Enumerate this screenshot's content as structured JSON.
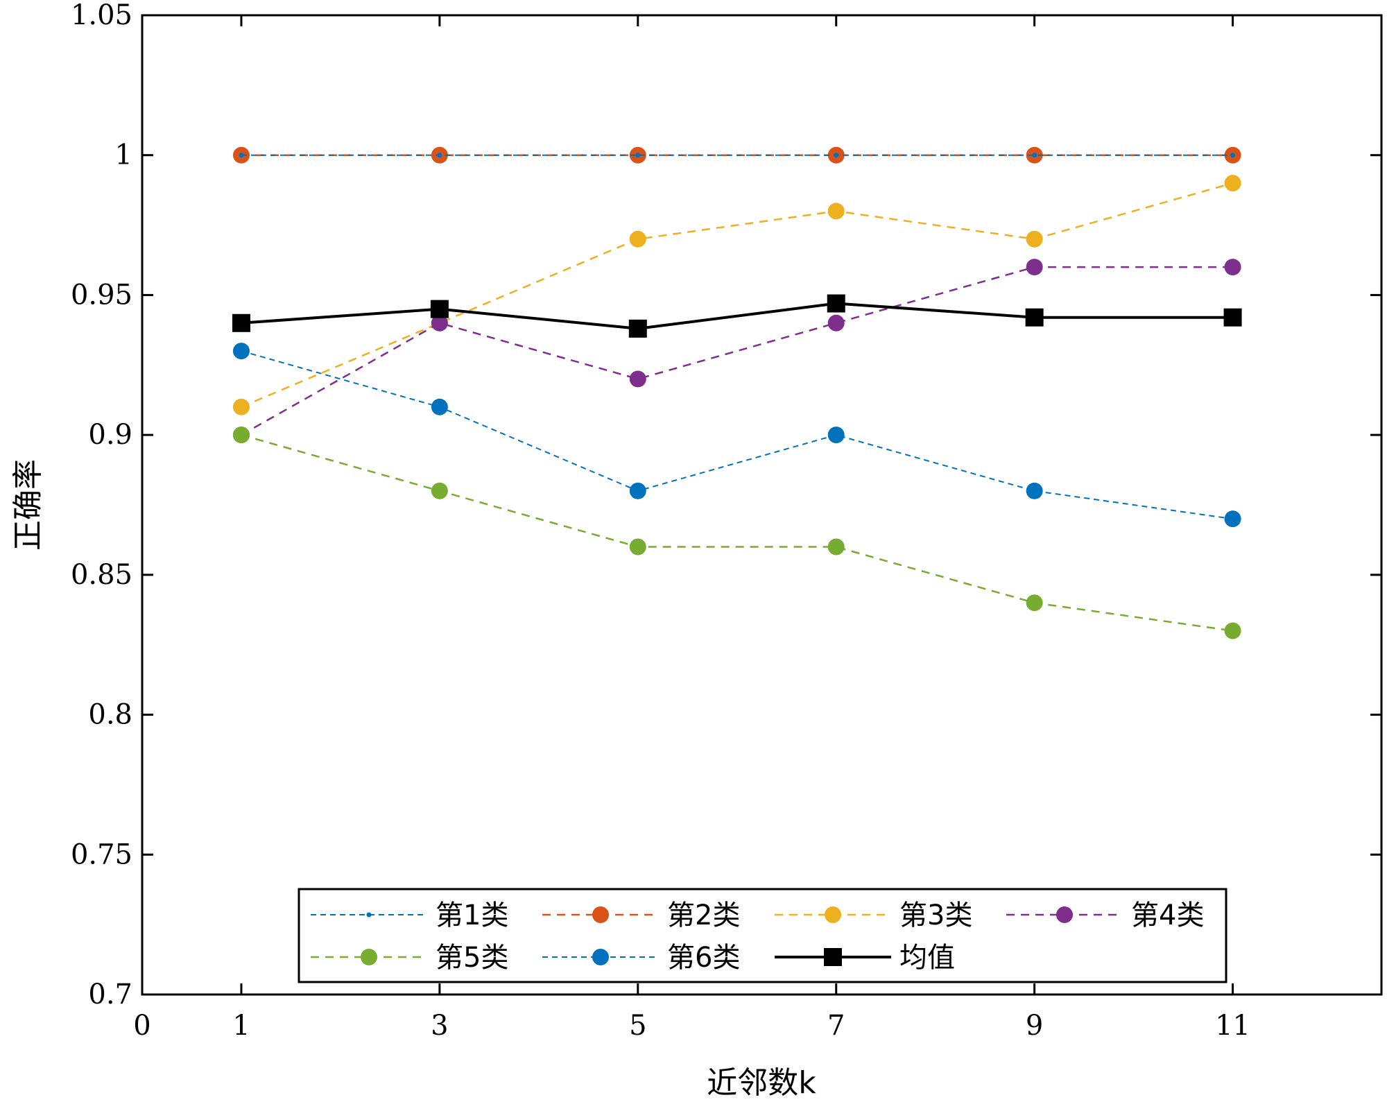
{
  "chart_data": {
    "type": "line",
    "title": "",
    "xlabel": "近邻数k",
    "ylabel": "正确率",
    "xlim": [
      0,
      12.5
    ],
    "ylim": [
      0.7,
      1.05
    ],
    "xticks": [
      "0",
      "1",
      "3",
      "5",
      "7",
      "9",
      "11"
    ],
    "xtick_values": [
      0,
      1,
      3,
      5,
      7,
      9,
      11
    ],
    "yticks": [
      "0.7",
      "0.75",
      "0.8",
      "0.85",
      "0.9",
      "0.95",
      "1",
      "1.05"
    ],
    "ytick_values": [
      0.7,
      0.75,
      0.8,
      0.85,
      0.9,
      0.95,
      1.0,
      1.05
    ],
    "grid": false,
    "legend_position": "bottom-center",
    "x": [
      1,
      3,
      5,
      7,
      9,
      11
    ],
    "series": [
      {
        "name": "第1类",
        "values": [
          1.0,
          1.0,
          1.0,
          1.0,
          1.0,
          1.0
        ],
        "color": "#0072BD",
        "dash": "dashed",
        "marker": "dot"
      },
      {
        "name": "第2类",
        "values": [
          1.0,
          1.0,
          1.0,
          1.0,
          1.0,
          1.0
        ],
        "color": "#D95319",
        "dash": "dashed",
        "marker": "circle"
      },
      {
        "name": "第3类",
        "values": [
          0.91,
          0.94,
          0.97,
          0.98,
          0.97,
          0.99
        ],
        "color": "#EDB120",
        "dash": "dashed",
        "marker": "circle"
      },
      {
        "name": "第4类",
        "values": [
          0.9,
          0.94,
          0.92,
          0.94,
          0.96,
          0.96
        ],
        "color": "#7E2F8E",
        "dash": "dashed",
        "marker": "circle"
      },
      {
        "name": "第5类",
        "values": [
          0.9,
          0.88,
          0.86,
          0.86,
          0.84,
          0.83
        ],
        "color": "#77AC30",
        "dash": "dashed",
        "marker": "circle"
      },
      {
        "name": "第6类",
        "values": [
          0.93,
          0.91,
          0.88,
          0.9,
          0.88,
          0.87
        ],
        "color": "#0072BD",
        "dash": "dashed",
        "marker": "circle"
      },
      {
        "name": "均值",
        "values": [
          0.94,
          0.945,
          0.938,
          0.947,
          0.942,
          0.942
        ],
        "color": "#000000",
        "dash": "solid",
        "marker": "square"
      }
    ]
  }
}
